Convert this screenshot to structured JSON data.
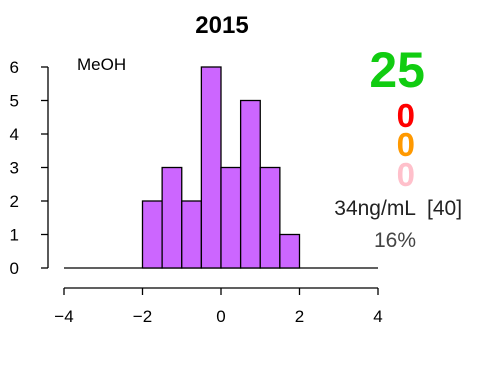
{
  "chart_data": {
    "type": "bar",
    "title": "2015",
    "subtitle": "",
    "xlabel": "",
    "ylabel": "",
    "xlim": [
      -4,
      4
    ],
    "ylim": [
      0,
      6
    ],
    "x_ticks": [
      "−4",
      "−2",
      "0",
      "2",
      "4"
    ],
    "y_ticks": [
      "0",
      "1",
      "2",
      "3",
      "4",
      "5",
      "6"
    ],
    "bin_width": 0.5,
    "bins": [
      {
        "start": -2.0,
        "end": -1.5,
        "count": 2
      },
      {
        "start": -1.5,
        "end": -1.0,
        "count": 3
      },
      {
        "start": -1.0,
        "end": -0.5,
        "count": 2
      },
      {
        "start": -0.5,
        "end": 0.0,
        "count": 6
      },
      {
        "start": 0.0,
        "end": 0.5,
        "count": 3
      },
      {
        "start": 0.5,
        "end": 1.0,
        "count": 5
      },
      {
        "start": 1.0,
        "end": 1.5,
        "count": 3
      },
      {
        "start": 1.5,
        "end": 2.0,
        "count": 1
      }
    ],
    "bar_color": "#cc66ff",
    "grid": false,
    "annotations": {
      "label": "MeOH",
      "count_main": "25",
      "count_main_color": "#11cc11",
      "count_red": "0",
      "count_red_color": "#ff0000",
      "count_orange": "0",
      "count_orange_color": "#ff9900",
      "count_pink": "0",
      "count_pink_color": "#ffc0cb",
      "concentration": "34ng/mL",
      "bracket": "[40]",
      "percent": "16%"
    }
  }
}
